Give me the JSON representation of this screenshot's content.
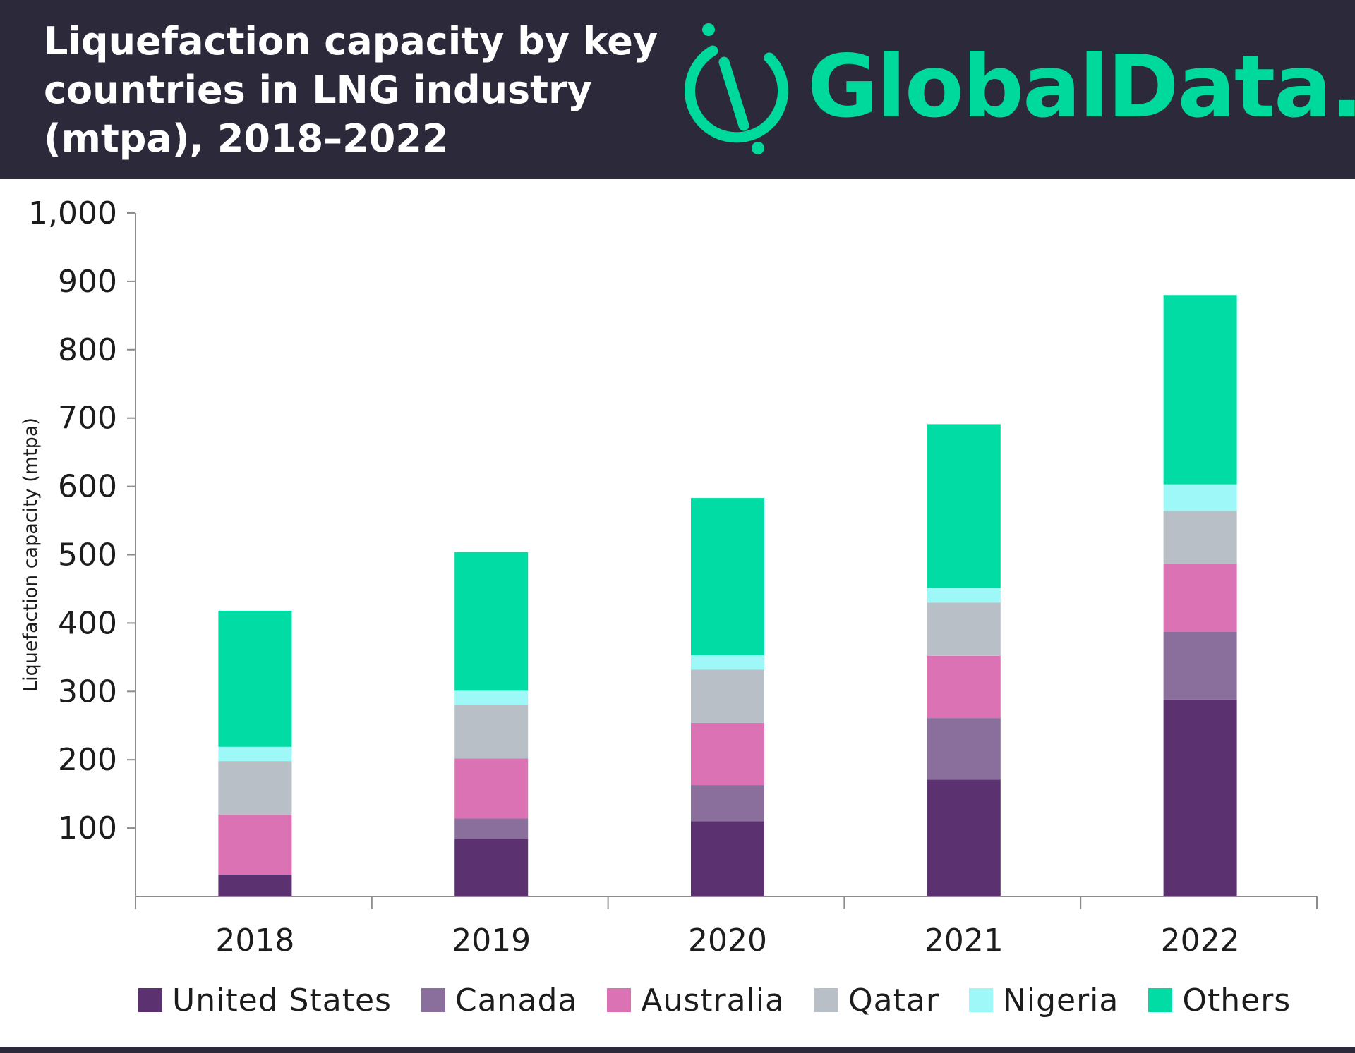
{
  "header": {
    "title": "Liquefaction capacity by key countries in LNG industry (mtpa), 2018–2022",
    "logo_text": "GlobalData."
  },
  "colors": {
    "header_bg": "#2c2a3a",
    "brand_green": "#00d99c"
  },
  "chart_data": {
    "type": "bar",
    "stacked": true,
    "title": "Liquefaction capacity by key countries in LNG industry (mtpa), 2018–2022",
    "xlabel": "",
    "ylabel": "Liquefaction capacity (mtpa)",
    "ylim": [
      0,
      1000
    ],
    "yticks": [
      100,
      200,
      300,
      400,
      500,
      600,
      700,
      800,
      900,
      1000
    ],
    "ytick_labels": [
      "100",
      "200",
      "300",
      "400",
      "500",
      "600",
      "700",
      "800",
      "900",
      "1,000"
    ],
    "categories": [
      "2018",
      "2019",
      "2020",
      "2021",
      "2022"
    ],
    "grid": false,
    "legend_position": "bottom",
    "series": [
      {
        "name": "United States",
        "color": "#5b3170",
        "values": [
          32,
          84,
          110,
          171,
          288
        ]
      },
      {
        "name": "Canada",
        "color": "#8a6f9c",
        "values": [
          0,
          30,
          53,
          90,
          99
        ]
      },
      {
        "name": "Australia",
        "color": "#db72b3",
        "values": [
          88,
          88,
          91,
          91,
          100
        ]
      },
      {
        "name": "Qatar",
        "color": "#b8bfc6",
        "values": [
          78,
          78,
          78,
          78,
          77
        ]
      },
      {
        "name": "Nigeria",
        "color": "#9ef8f7",
        "values": [
          21,
          21,
          21,
          21,
          39
        ]
      },
      {
        "name": "Others",
        "color": "#00dca4",
        "values": [
          199,
          203,
          230,
          240,
          277
        ]
      }
    ]
  }
}
